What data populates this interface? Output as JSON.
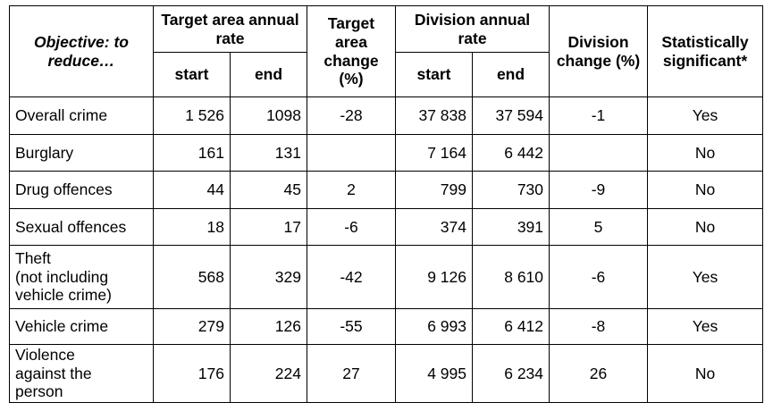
{
  "header": {
    "objective": "Objective: to reduce…",
    "target_area_rate": "Target area annual rate",
    "target_area_change": "Target area change (%)",
    "division_rate": "Division annual rate",
    "division_change": "Division change (%)",
    "significant": "Statistically significant*",
    "start": "start",
    "end": "end"
  },
  "rows": [
    {
      "label": "Overall crime",
      "ta_start": "1 526",
      "ta_end": "1098",
      "ta_change": "-28",
      "div_start": "37 838",
      "div_end": "37 594",
      "div_change": "-1",
      "significant": "Yes"
    },
    {
      "label": "Burglary",
      "ta_start": "161",
      "ta_end": "131",
      "ta_change": "",
      "div_start": "7 164",
      "div_end": "6 442",
      "div_change": "",
      "significant": "No"
    },
    {
      "label": "Drug offences",
      "ta_start": "44",
      "ta_end": "45",
      "ta_change": "2",
      "div_start": "799",
      "div_end": "730",
      "div_change": "-9",
      "significant": "No"
    },
    {
      "label": "Sexual offences",
      "ta_start": "18",
      "ta_end": "17",
      "ta_change": "-6",
      "div_start": "374",
      "div_end": "391",
      "div_change": "5",
      "significant": "No"
    },
    {
      "label": "Theft\n(not including\nvehicle crime)",
      "ta_start": "568",
      "ta_end": "329",
      "ta_change": "-42",
      "div_start": "9 126",
      "div_end": "8 610",
      "div_change": "-6",
      "significant": "Yes"
    },
    {
      "label": "Vehicle crime",
      "ta_start": "279",
      "ta_end": "126",
      "ta_change": "-55",
      "div_start": "6 993",
      "div_end": "6 412",
      "div_change": "-8",
      "significant": "Yes"
    },
    {
      "label": "Violence\nagainst the\nperson",
      "ta_start": "176",
      "ta_end": "224",
      "ta_change": "27",
      "div_start": "4 995",
      "div_end": "6 234",
      "div_change": "26",
      "significant": "No"
    }
  ]
}
